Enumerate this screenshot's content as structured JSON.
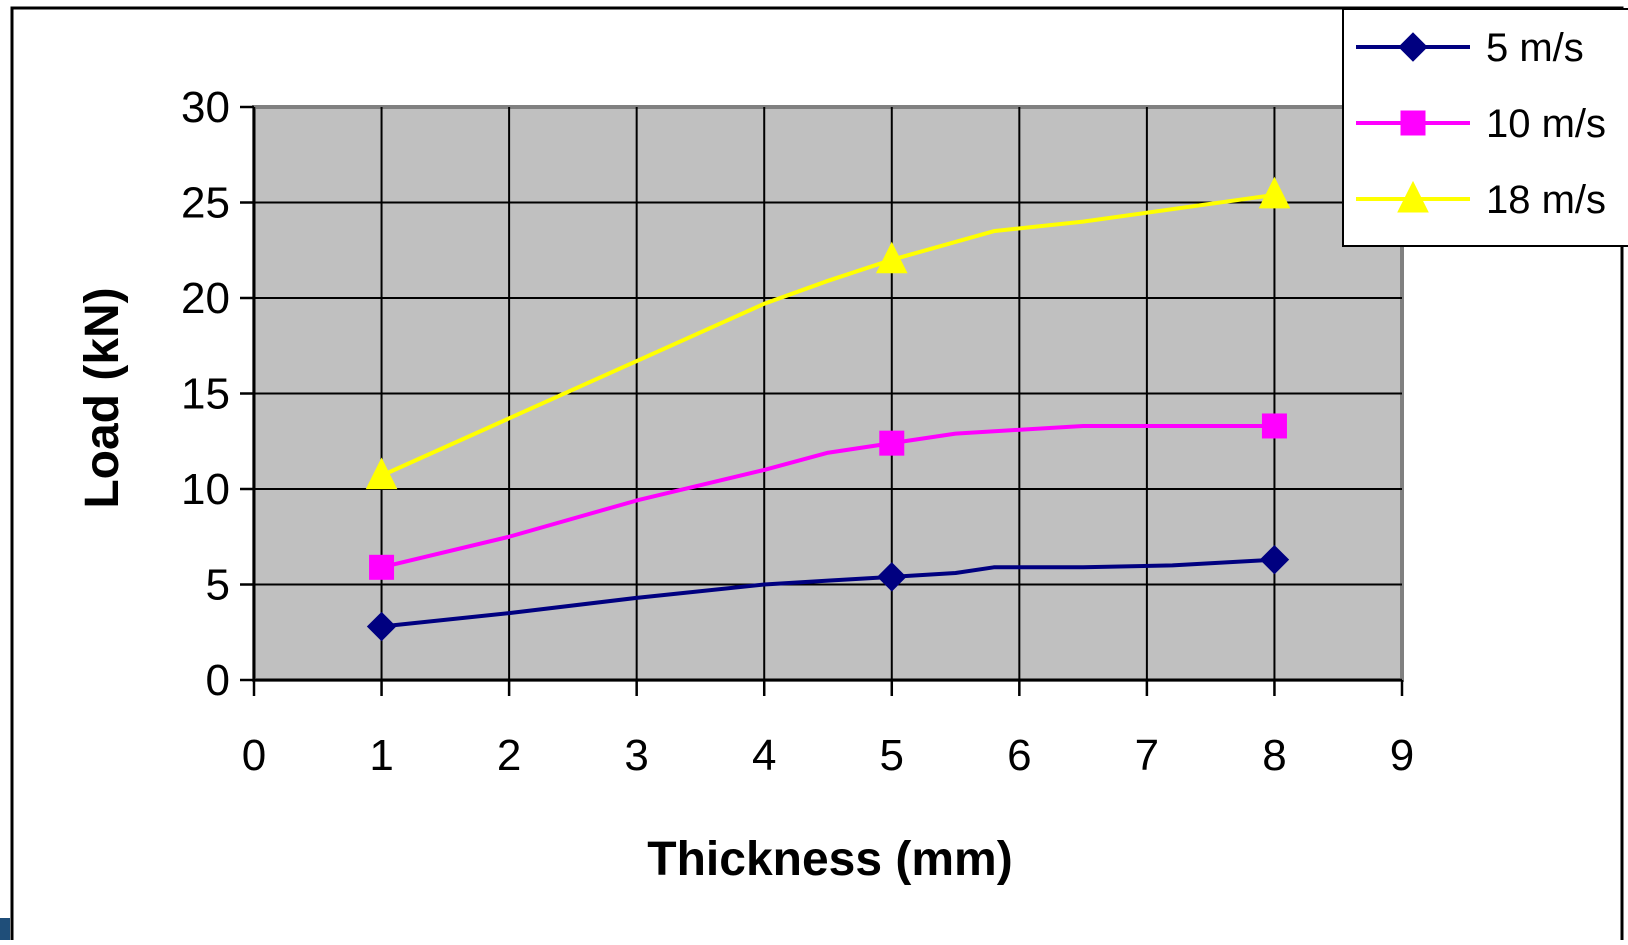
{
  "chart_data": {
    "type": "line",
    "title": "",
    "xlabel": "Thickness (mm)",
    "ylabel": "Load (kN)",
    "xlim": [
      0,
      9
    ],
    "ylim": [
      0,
      30
    ],
    "x_ticks": [
      "0",
      "1",
      "2",
      "3",
      "4",
      "5",
      "6",
      "7",
      "8",
      "9"
    ],
    "y_ticks": [
      "0",
      "5",
      "10",
      "15",
      "20",
      "25",
      "30"
    ],
    "grid": true,
    "plot_background": "#c0c0c0",
    "legend_position": "top-right",
    "series": [
      {
        "name": "5 m/s",
        "color": "#000080",
        "marker": "diamond",
        "x": [
          1,
          2,
          3,
          4,
          4.5,
          5,
          5.5,
          5.8,
          6.5,
          7.2,
          8
        ],
        "y": [
          2.8,
          3.5,
          4.3,
          5.0,
          5.2,
          5.4,
          5.6,
          5.9,
          5.9,
          6.0,
          6.3
        ],
        "marker_x": [
          1,
          5,
          8
        ],
        "marker_y": [
          2.8,
          5.4,
          6.3
        ]
      },
      {
        "name": "10 m/s",
        "color": "#ff00ff",
        "marker": "square",
        "x": [
          1,
          2,
          3,
          4,
          4.5,
          5,
          5.5,
          6.5,
          8
        ],
        "y": [
          5.9,
          7.5,
          9.4,
          11.0,
          11.9,
          12.4,
          12.9,
          13.3,
          13.3
        ],
        "marker_x": [
          1,
          5,
          8
        ],
        "marker_y": [
          5.9,
          12.4,
          13.3
        ]
      },
      {
        "name": "18 m/s",
        "color": "#ffff00",
        "marker": "triangle",
        "x": [
          1,
          2,
          3,
          4,
          4.5,
          5,
          5.8,
          6.5,
          8
        ],
        "y": [
          10.7,
          13.7,
          16.7,
          19.7,
          20.9,
          22.0,
          23.5,
          24.0,
          25.4
        ],
        "marker_x": [
          1,
          5,
          8
        ],
        "marker_y": [
          10.7,
          22.0,
          25.4
        ]
      }
    ]
  }
}
